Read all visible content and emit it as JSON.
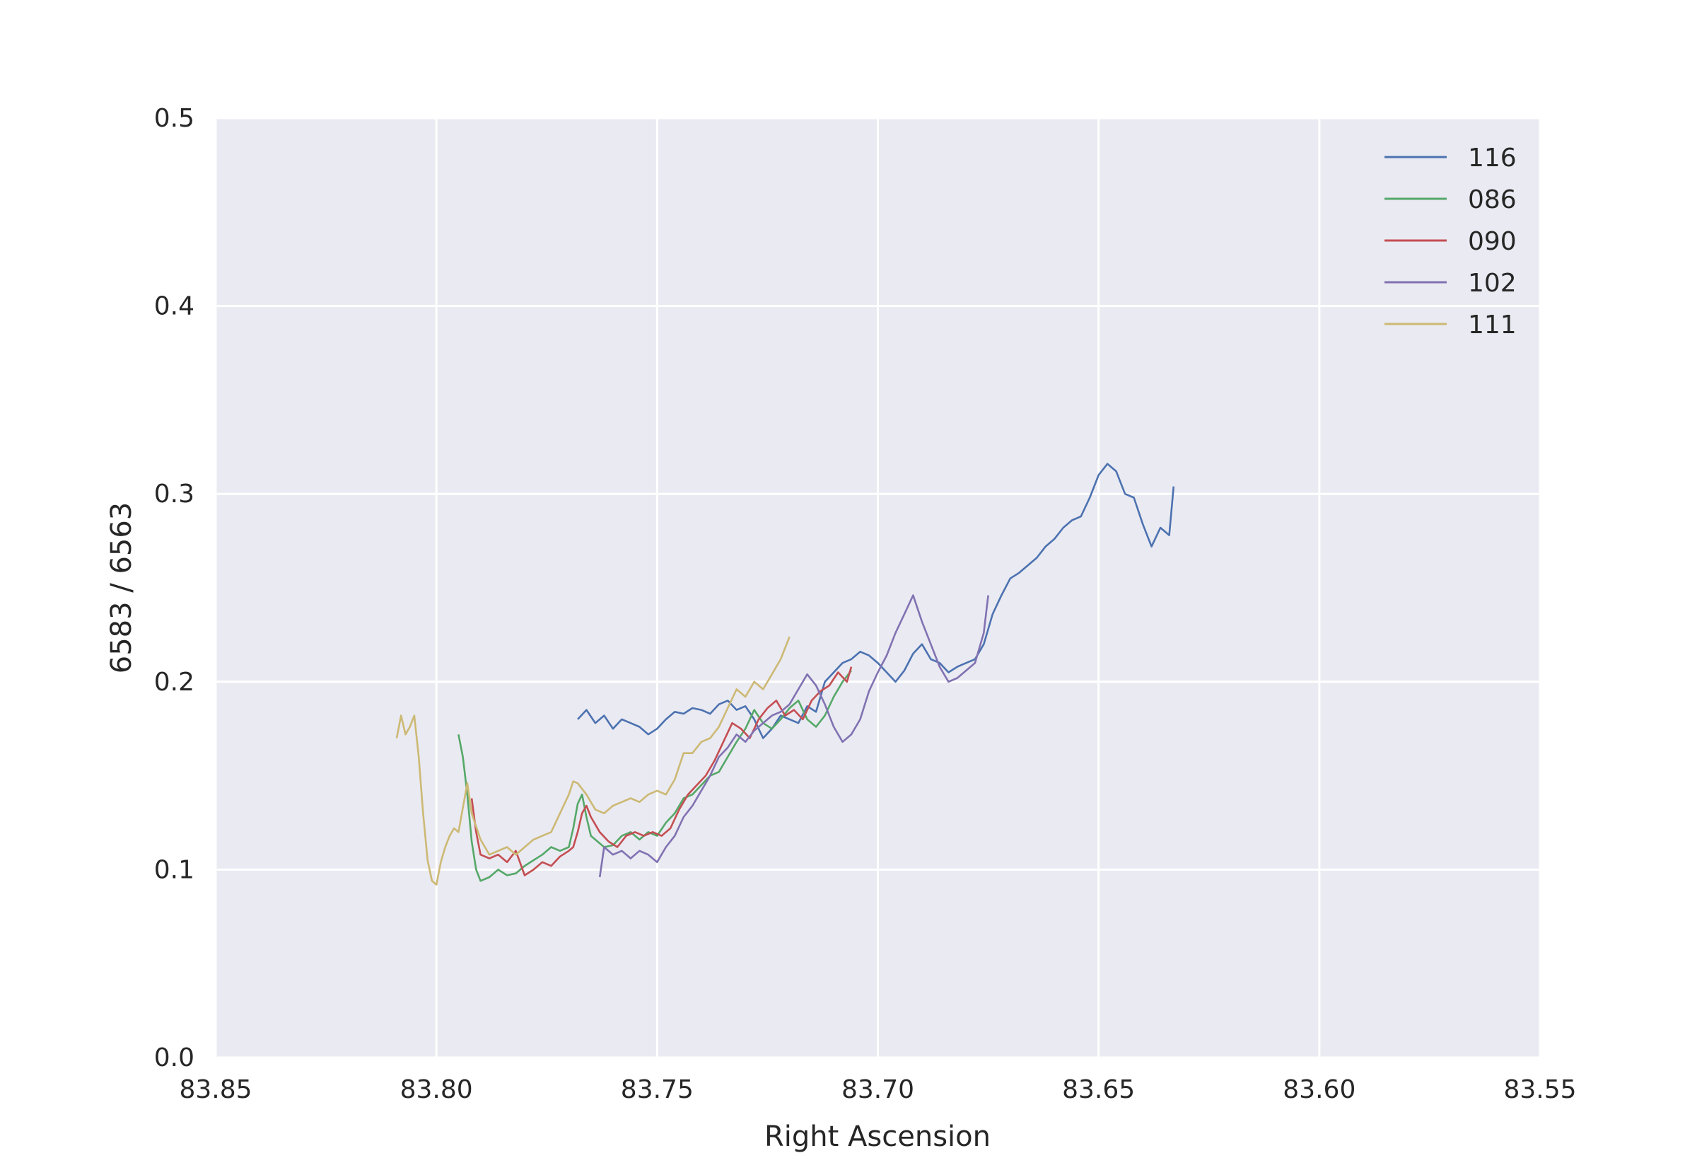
{
  "chart_data": {
    "type": "line",
    "title": "",
    "xlabel": "Right Ascension",
    "ylabel": "6583 / 6563",
    "xlim": [
      83.85,
      83.55
    ],
    "ylim": [
      0.0,
      0.5
    ],
    "x_inverted": true,
    "grid": true,
    "legend_position": "top-right",
    "x_ticks": [
      "83.85",
      "83.80",
      "83.75",
      "83.70",
      "83.65",
      "83.60",
      "83.55"
    ],
    "y_ticks": [
      "0.0",
      "0.1",
      "0.2",
      "0.3",
      "0.4",
      "0.5"
    ],
    "colors": {
      "plot_background": "#EAEAF2",
      "grid": "#FFFFFF",
      "116": "#4C72B0",
      "086": "#55A868",
      "090": "#C44E52",
      "102": "#8172B2",
      "111": "#CCB974"
    },
    "series": [
      {
        "name": "116",
        "x": [
          83.768,
          83.766,
          83.764,
          83.762,
          83.76,
          83.758,
          83.756,
          83.754,
          83.752,
          83.75,
          83.748,
          83.746,
          83.744,
          83.742,
          83.74,
          83.738,
          83.736,
          83.734,
          83.732,
          83.73,
          83.728,
          83.726,
          83.724,
          83.722,
          83.72,
          83.718,
          83.716,
          83.714,
          83.712,
          83.71,
          83.708,
          83.706,
          83.704,
          83.702,
          83.7,
          83.698,
          83.696,
          83.694,
          83.692,
          83.69,
          83.688,
          83.686,
          83.684,
          83.682,
          83.68,
          83.678,
          83.676,
          83.674,
          83.672,
          83.67,
          83.668,
          83.666,
          83.664,
          83.662,
          83.66,
          83.658,
          83.656,
          83.654,
          83.652,
          83.65,
          83.648,
          83.646,
          83.644,
          83.642,
          83.64,
          83.638,
          83.636,
          83.634,
          83.633
        ],
        "values": [
          0.18,
          0.185,
          0.178,
          0.182,
          0.175,
          0.18,
          0.178,
          0.176,
          0.172,
          0.175,
          0.18,
          0.184,
          0.183,
          0.186,
          0.185,
          0.183,
          0.188,
          0.19,
          0.185,
          0.187,
          0.18,
          0.17,
          0.175,
          0.182,
          0.18,
          0.178,
          0.187,
          0.184,
          0.2,
          0.205,
          0.21,
          0.212,
          0.216,
          0.214,
          0.21,
          0.205,
          0.2,
          0.206,
          0.215,
          0.22,
          0.212,
          0.21,
          0.205,
          0.208,
          0.21,
          0.212,
          0.22,
          0.236,
          0.246,
          0.255,
          0.258,
          0.262,
          0.266,
          0.272,
          0.276,
          0.282,
          0.286,
          0.288,
          0.298,
          0.31,
          0.316,
          0.312,
          0.3,
          0.298,
          0.284,
          0.272,
          0.282,
          0.278,
          0.304
        ]
      },
      {
        "name": "086",
        "x": [
          83.795,
          83.794,
          83.793,
          83.792,
          83.791,
          83.79,
          83.788,
          83.786,
          83.784,
          83.782,
          83.78,
          83.778,
          83.776,
          83.774,
          83.772,
          83.77,
          83.769,
          83.768,
          83.767,
          83.766,
          83.765,
          83.762,
          83.76,
          83.758,
          83.756,
          83.754,
          83.752,
          83.75,
          83.748,
          83.746,
          83.744,
          83.742,
          83.74,
          83.738,
          83.736,
          83.734,
          83.732,
          83.73,
          83.728,
          83.726,
          83.724,
          83.722,
          83.72,
          83.718,
          83.716,
          83.714,
          83.712,
          83.71,
          83.708,
          83.706
        ],
        "values": [
          0.172,
          0.16,
          0.14,
          0.115,
          0.1,
          0.094,
          0.096,
          0.1,
          0.097,
          0.098,
          0.102,
          0.105,
          0.108,
          0.112,
          0.11,
          0.112,
          0.122,
          0.135,
          0.14,
          0.128,
          0.118,
          0.112,
          0.113,
          0.118,
          0.12,
          0.116,
          0.12,
          0.118,
          0.125,
          0.13,
          0.138,
          0.14,
          0.145,
          0.15,
          0.152,
          0.16,
          0.168,
          0.175,
          0.185,
          0.178,
          0.175,
          0.18,
          0.186,
          0.19,
          0.18,
          0.176,
          0.182,
          0.192,
          0.2,
          0.206
        ]
      },
      {
        "name": "090",
        "x": [
          83.792,
          83.791,
          83.79,
          83.788,
          83.786,
          83.784,
          83.782,
          83.78,
          83.778,
          83.776,
          83.774,
          83.772,
          83.77,
          83.769,
          83.768,
          83.767,
          83.766,
          83.765,
          83.763,
          83.761,
          83.759,
          83.757,
          83.755,
          83.753,
          83.751,
          83.749,
          83.747,
          83.745,
          83.743,
          83.741,
          83.739,
          83.737,
          83.735,
          83.733,
          83.731,
          83.729,
          83.727,
          83.725,
          83.723,
          83.721,
          83.719,
          83.717,
          83.715,
          83.713,
          83.711,
          83.709,
          83.707,
          83.706
        ],
        "values": [
          0.138,
          0.12,
          0.108,
          0.106,
          0.108,
          0.104,
          0.11,
          0.097,
          0.1,
          0.104,
          0.102,
          0.107,
          0.11,
          0.112,
          0.12,
          0.13,
          0.134,
          0.128,
          0.12,
          0.115,
          0.112,
          0.118,
          0.12,
          0.118,
          0.12,
          0.118,
          0.122,
          0.132,
          0.14,
          0.145,
          0.15,
          0.158,
          0.168,
          0.178,
          0.175,
          0.17,
          0.18,
          0.186,
          0.19,
          0.182,
          0.185,
          0.18,
          0.19,
          0.195,
          0.198,
          0.205,
          0.2,
          0.208
        ]
      },
      {
        "name": "102",
        "x": [
          83.763,
          83.762,
          83.76,
          83.758,
          83.756,
          83.754,
          83.752,
          83.75,
          83.748,
          83.746,
          83.744,
          83.742,
          83.74,
          83.738,
          83.736,
          83.734,
          83.732,
          83.73,
          83.728,
          83.726,
          83.724,
          83.722,
          83.72,
          83.718,
          83.716,
          83.714,
          83.712,
          83.71,
          83.708,
          83.706,
          83.704,
          83.702,
          83.7,
          83.698,
          83.696,
          83.694,
          83.692,
          83.69,
          83.688,
          83.686,
          83.684,
          83.682,
          83.68,
          83.678,
          83.676,
          83.675
        ],
        "values": [
          0.096,
          0.112,
          0.108,
          0.11,
          0.106,
          0.11,
          0.108,
          0.104,
          0.112,
          0.118,
          0.128,
          0.134,
          0.142,
          0.15,
          0.16,
          0.165,
          0.172,
          0.168,
          0.174,
          0.178,
          0.182,
          0.184,
          0.188,
          0.196,
          0.204,
          0.198,
          0.188,
          0.176,
          0.168,
          0.172,
          0.18,
          0.195,
          0.205,
          0.214,
          0.226,
          0.236,
          0.246,
          0.232,
          0.22,
          0.208,
          0.2,
          0.202,
          0.206,
          0.21,
          0.226,
          0.246
        ]
      },
      {
        "name": "111",
        "x": [
          83.809,
          83.808,
          83.807,
          83.806,
          83.805,
          83.804,
          83.803,
          83.802,
          83.801,
          83.8,
          83.799,
          83.798,
          83.797,
          83.796,
          83.795,
          83.793,
          83.792,
          83.79,
          83.788,
          83.786,
          83.784,
          83.782,
          83.78,
          83.778,
          83.776,
          83.774,
          83.772,
          83.77,
          83.769,
          83.768,
          83.766,
          83.764,
          83.762,
          83.76,
          83.758,
          83.756,
          83.754,
          83.752,
          83.75,
          83.748,
          83.746,
          83.744,
          83.742,
          83.74,
          83.738,
          83.736,
          83.734,
          83.732,
          83.73,
          83.728,
          83.726,
          83.724,
          83.722,
          83.72
        ],
        "values": [
          0.17,
          0.182,
          0.172,
          0.176,
          0.182,
          0.16,
          0.13,
          0.105,
          0.094,
          0.092,
          0.104,
          0.112,
          0.118,
          0.122,
          0.12,
          0.146,
          0.13,
          0.116,
          0.108,
          0.11,
          0.112,
          0.108,
          0.112,
          0.116,
          0.118,
          0.12,
          0.13,
          0.14,
          0.147,
          0.146,
          0.14,
          0.132,
          0.13,
          0.134,
          0.136,
          0.138,
          0.136,
          0.14,
          0.142,
          0.14,
          0.148,
          0.162,
          0.162,
          0.168,
          0.17,
          0.176,
          0.186,
          0.196,
          0.192,
          0.2,
          0.196,
          0.204,
          0.212,
          0.224
        ]
      }
    ]
  }
}
